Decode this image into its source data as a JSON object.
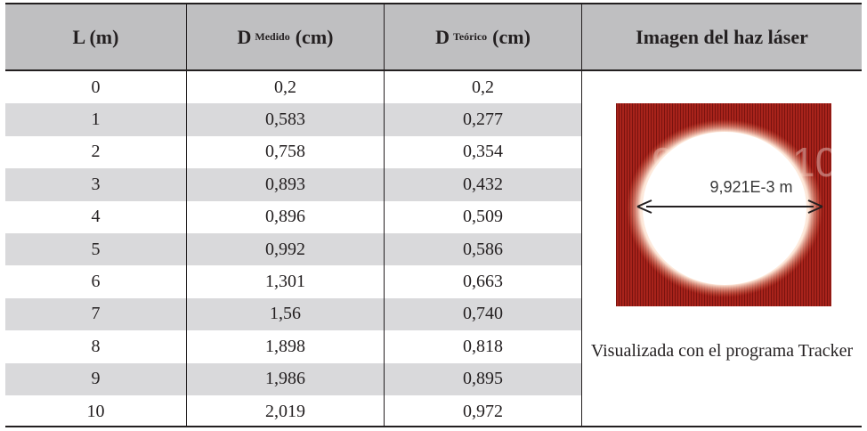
{
  "table": {
    "headers": [
      {
        "main": "L (m)",
        "sub": "",
        "unit": ""
      },
      {
        "main": "D",
        "sub": "Medido",
        "unit": "(cm)"
      },
      {
        "main": "D",
        "sub": "Teórico",
        "unit": "(cm)"
      },
      {
        "main": "Imagen del haz láser",
        "sub": "",
        "unit": ""
      }
    ],
    "rows": [
      {
        "L": "0",
        "medido": "0,2",
        "teorico": "0,2"
      },
      {
        "L": "1",
        "medido": "0,583",
        "teorico": "0,277"
      },
      {
        "L": "2",
        "medido": "0,758",
        "teorico": "0,354"
      },
      {
        "L": "3",
        "medido": "0,893",
        "teorico": "0,432"
      },
      {
        "L": "4",
        "medido": "0,896",
        "teorico": "0,509"
      },
      {
        "L": "5",
        "medido": "0,992",
        "teorico": "0,586"
      },
      {
        "L": "6",
        "medido": "1,301",
        "teorico": "0,663"
      },
      {
        "L": "7",
        "medido": "1,56",
        "teorico": "0,740"
      },
      {
        "L": "8",
        "medido": "1,898",
        "teorico": "0,818"
      },
      {
        "L": "9",
        "medido": "1,986",
        "teorico": "0,895"
      },
      {
        "L": "10",
        "medido": "2,019",
        "teorico": "0,972"
      }
    ]
  },
  "image": {
    "measurement": "9,921E-3 m",
    "caption": "Visualizada con el programa Tracker",
    "bg_digit_left": "9",
    "bg_digit_right": "10"
  },
  "colors": {
    "header_bg": "#bfbfc1",
    "stripe_bg": "#d9d9db",
    "border": "#231f20",
    "laser_red": "#b3261e"
  }
}
